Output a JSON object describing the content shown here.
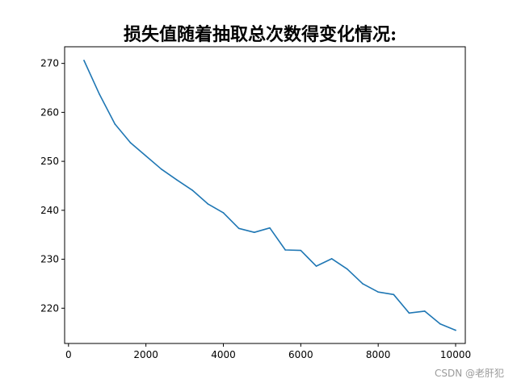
{
  "chart_data": {
    "type": "line",
    "title": "损失值随着抽取总次数得变化情况:",
    "xlabel": "",
    "ylabel": "",
    "xlim": [
      -100,
      10250
    ],
    "ylim": [
      212.8,
      273.4
    ],
    "grid": false,
    "legend": "none",
    "x_ticks": [
      0,
      2000,
      4000,
      6000,
      8000,
      10000
    ],
    "y_ticks": [
      220,
      230,
      240,
      250,
      260,
      270
    ],
    "series": [
      {
        "color": "#1f77b4",
        "x": [
          400,
          800,
          1200,
          1600,
          2000,
          2400,
          2800,
          3200,
          3600,
          4000,
          4400,
          4800,
          5200,
          5600,
          6000,
          6400,
          6800,
          7200,
          7600,
          8000,
          8400,
          8800,
          9200,
          9600,
          10000
        ],
        "y": [
          270.6,
          263.7,
          257.6,
          253.8,
          251.1,
          248.4,
          246.2,
          244.1,
          241.3,
          239.5,
          236.3,
          235.5,
          236.4,
          231.9,
          231.8,
          228.6,
          230.1,
          228.0,
          225.0,
          223.3,
          222.8,
          219.0,
          219.4,
          216.8,
          215.5
        ]
      }
    ]
  },
  "watermark": "CSDN @老肝犯"
}
